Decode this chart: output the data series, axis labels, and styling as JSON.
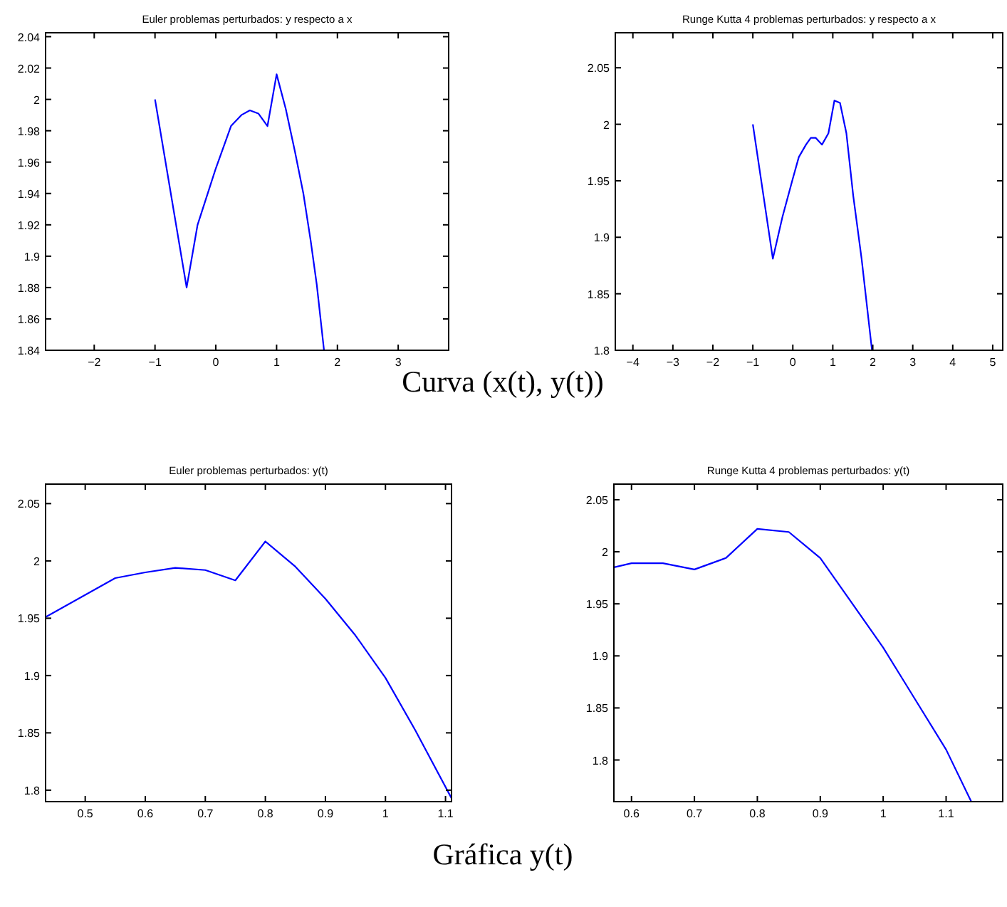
{
  "chart_data": [
    {
      "type": "line",
      "title": "Euler problemas perturbados: y respecto a x",
      "xlim": [
        -2.8,
        3.83
      ],
      "ylim": [
        1.84,
        2.0425
      ],
      "xticks": [
        {
          "value": -2,
          "label": "−2"
        },
        {
          "value": -1,
          "label": "−1"
        },
        0,
        1,
        2,
        3
      ],
      "yticks": [
        1.84,
        1.86,
        1.88,
        1.9,
        1.92,
        1.94,
        1.96,
        1.98,
        2,
        2.02,
        2.04
      ],
      "grid": false,
      "annotations": [
        "Curva (x(t), y(t))"
      ],
      "series": [
        {
          "color": "#0000ff",
          "x": [
            -1,
            -0.48,
            -0.3,
            0,
            0.25,
            0.42,
            0.56,
            0.7,
            0.85,
            1,
            1.15,
            1.3,
            1.44,
            1.56,
            1.66,
            1.78
          ],
          "values": [
            2,
            1.88,
            1.92,
            1.956,
            1.983,
            1.99,
            1.993,
            1.991,
            1.983,
            2.016,
            1.994,
            1.967,
            1.94,
            1.91,
            1.882,
            1.84
          ]
        }
      ]
    },
    {
      "type": "line",
      "title": "Runge Kutta 4 problemas perturbados: y respecto a x",
      "xlim": [
        -4.44,
        5.25
      ],
      "ylim": [
        1.8,
        2.081
      ],
      "xticks": [
        {
          "value": -4,
          "label": "−4"
        },
        {
          "value": -3,
          "label": "−3"
        },
        {
          "value": -2,
          "label": "−2"
        },
        {
          "value": -1,
          "label": "−1"
        },
        0,
        1,
        2,
        3,
        4,
        5
      ],
      "yticks": [
        1.8,
        1.85,
        1.9,
        1.95,
        2,
        2.05
      ],
      "grid": false,
      "series": [
        {
          "color": "#0000ff",
          "x": [
            -1,
            -0.5,
            -0.26,
            0,
            0.15,
            0.33,
            0.45,
            0.57,
            0.73,
            0.89,
            1.04,
            1.18,
            1.34,
            1.51,
            1.72,
            1.98
          ],
          "values": [
            2,
            1.881,
            1.918,
            1.952,
            1.971,
            1.982,
            1.988,
            1.988,
            1.982,
            1.992,
            2.021,
            2.019,
            1.992,
            1.937,
            1.881,
            1.8
          ]
        }
      ]
    },
    {
      "type": "line",
      "title": "Euler problemas perturbados: y(t)",
      "xlim": [
        0.434,
        1.11
      ],
      "ylim": [
        1.79,
        2.067
      ],
      "xticks": [
        0.5,
        0.6,
        0.7,
        0.8,
        0.9,
        1,
        1.1
      ],
      "yticks": [
        1.8,
        1.85,
        1.9,
        1.95,
        2,
        2.05
      ],
      "grid": false,
      "annotations": [
        "Gráfica y(t)"
      ],
      "series": [
        {
          "color": "#0000ff",
          "x": [
            0.434,
            0.55,
            0.6,
            0.65,
            0.7,
            0.75,
            0.8,
            0.85,
            0.9,
            0.95,
            1,
            1.05,
            1.11
          ],
          "values": [
            1.951,
            1.985,
            1.99,
            1.994,
            1.992,
            1.983,
            2.017,
            1.995,
            1.967,
            1.935,
            1.898,
            1.852,
            1.793
          ]
        }
      ]
    },
    {
      "type": "line",
      "title": "Runge Kutta 4 problemas perturbados: y(t)",
      "xlim": [
        0.572,
        1.19
      ],
      "ylim": [
        1.76,
        2.065
      ],
      "xticks": [
        0.6,
        0.7,
        0.8,
        0.9,
        1,
        1.1
      ],
      "yticks": [
        1.8,
        1.85,
        1.9,
        1.95,
        2,
        2.05
      ],
      "grid": false,
      "series": [
        {
          "color": "#0000ff",
          "x": [
            0.572,
            0.6,
            0.65,
            0.7,
            0.75,
            0.8,
            0.85,
            0.9,
            0.95,
            1,
            1.05,
            1.1,
            1.14
          ],
          "values": [
            1.985,
            1.989,
            1.989,
            1.983,
            1.994,
            2.022,
            2.019,
            1.994,
            1.951,
            1.908,
            1.859,
            1.81,
            1.76
          ]
        }
      ]
    }
  ]
}
